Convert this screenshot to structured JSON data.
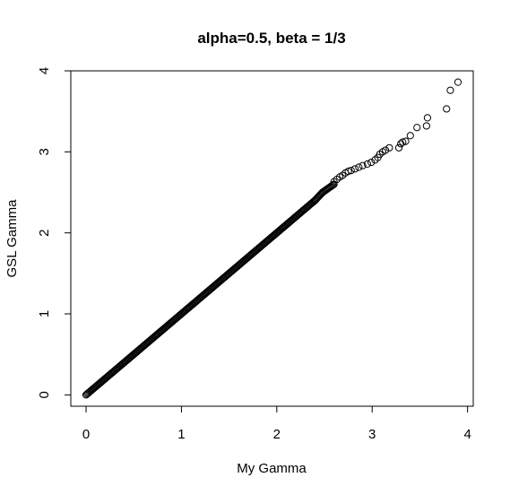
{
  "chart_data": {
    "type": "scatter",
    "title": "alpha=0.5, beta = 1/3",
    "xlabel": "My Gamma",
    "ylabel": "GSL Gamma",
    "xlim": [
      -0.16,
      4.06
    ],
    "ylim": [
      -0.14,
      4.0
    ],
    "x_ticks": [
      "0",
      "1",
      "2",
      "3",
      "4"
    ],
    "y_ticks": [
      "0",
      "1",
      "2",
      "3",
      "4"
    ],
    "grid": false,
    "legend": "none",
    "marker": "open-circle",
    "colors": {
      "points": "#000000",
      "axes": "#000000"
    },
    "points": [
      [
        2.6,
        2.63
      ],
      [
        2.63,
        2.66
      ],
      [
        2.66,
        2.69
      ],
      [
        2.69,
        2.71
      ],
      [
        2.72,
        2.74
      ],
      [
        2.75,
        2.76
      ],
      [
        2.78,
        2.77
      ],
      [
        2.82,
        2.79
      ],
      [
        2.86,
        2.81
      ],
      [
        2.9,
        2.83
      ],
      [
        2.95,
        2.85
      ],
      [
        2.99,
        2.87
      ],
      [
        3.03,
        2.9
      ],
      [
        3.06,
        2.93
      ],
      [
        3.08,
        2.97
      ],
      [
        3.11,
        3.0
      ],
      [
        3.14,
        3.02
      ],
      [
        3.18,
        3.05
      ],
      [
        3.28,
        3.05
      ],
      [
        3.3,
        3.1
      ],
      [
        3.32,
        3.12
      ],
      [
        3.35,
        3.13
      ],
      [
        3.4,
        3.2
      ],
      [
        3.47,
        3.3
      ],
      [
        3.57,
        3.32
      ],
      [
        3.58,
        3.42
      ],
      [
        3.78,
        3.53
      ],
      [
        3.82,
        3.76
      ],
      [
        3.9,
        3.86
      ]
    ],
    "dense_segments": [
      [
        0.0,
        0.0,
        2.4,
        2.4
      ],
      [
        2.4,
        2.4,
        2.48,
        2.5
      ],
      [
        2.48,
        2.5,
        2.6,
        2.6
      ]
    ]
  }
}
